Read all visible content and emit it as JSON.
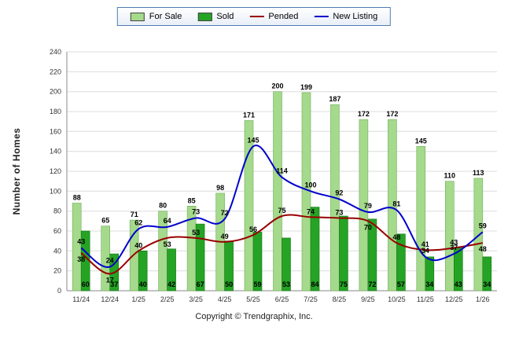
{
  "chart_data": {
    "type": "bar",
    "subtype": "grouped-bars-with-overlaid-smooth-lines",
    "categories": [
      "11/24",
      "12/24",
      "1/25",
      "2/25",
      "3/25",
      "4/25",
      "5/25",
      "6/25",
      "7/25",
      "8/25",
      "9/25",
      "10/25",
      "11/25",
      "12/25",
      "1/26"
    ],
    "series": [
      {
        "name": "For Sale",
        "type": "bar",
        "color": "#a5d98b",
        "border": "#6fae5c",
        "values": [
          88,
          65,
          71,
          80,
          85,
          98,
          171,
          200,
          199,
          187,
          172,
          172,
          145,
          110,
          113
        ]
      },
      {
        "name": "Sold",
        "type": "bar",
        "color": "#25a325",
        "border": "#127812",
        "values": [
          60,
          37,
          40,
          42,
          67,
          50,
          59,
          53,
          84,
          75,
          72,
          57,
          34,
          43,
          34
        ]
      },
      {
        "name": "Pended",
        "type": "line",
        "color": "#990000",
        "values": [
          38,
          17,
          40,
          53,
          53,
          49,
          56,
          75,
          74,
          73,
          70,
          48,
          41,
          43,
          48
        ]
      },
      {
        "name": "New Listing",
        "type": "line",
        "color": "#0000cc",
        "values": [
          43,
          24,
          62,
          64,
          73,
          72,
          145,
          114,
          100,
          92,
          79,
          81,
          34,
          37,
          59
        ]
      }
    ],
    "title": "",
    "xlabel": "",
    "ylabel": "Number of Homes",
    "ylim": [
      0,
      240
    ],
    "yticks": [
      0,
      20,
      40,
      60,
      80,
      100,
      120,
      140,
      160,
      180,
      200,
      220,
      240
    ],
    "grid": true,
    "legend_position": "top-center"
  },
  "footer": {
    "copyright": "Copyright © Trendgraphix, Inc."
  }
}
